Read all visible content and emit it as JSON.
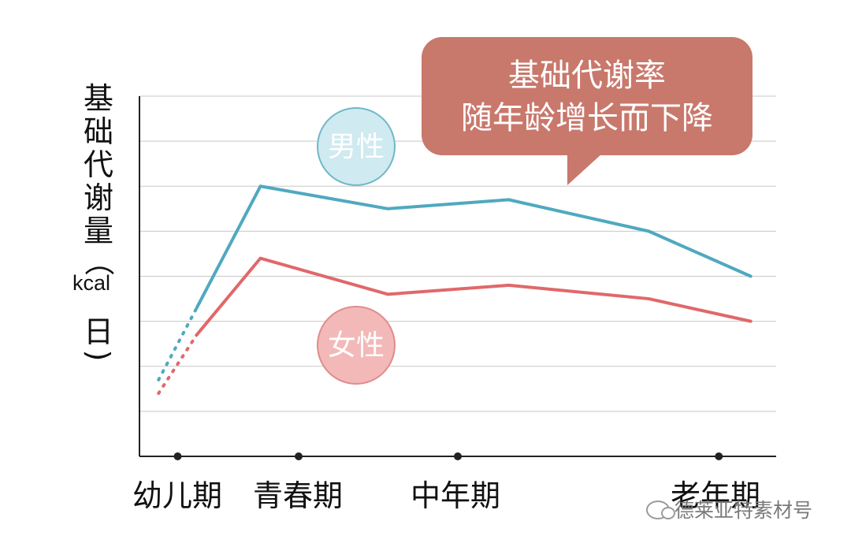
{
  "chart_data": {
    "type": "line",
    "title": "",
    "ylabel": "基础代谢量（kcal/日）",
    "ylabel_chars": [
      "基",
      "础",
      "代",
      "谢",
      "量",
      "（"
    ],
    "ylabel_unit": "kcal",
    "ylabel_tail_chars": [
      "日",
      ")"
    ],
    "xlabel": "",
    "categories": [
      "幼儿期",
      "青春期",
      "中年期",
      "老年期"
    ],
    "grid": true,
    "ylim": [
      0,
      8
    ],
    "xlim": [
      0,
      10
    ],
    "category_x": [
      0.6,
      2.5,
      5.0,
      9.1
    ],
    "series": [
      {
        "name": "男性",
        "color": "#4fa9bf",
        "dotted_x": [
          0.3,
          0.9
        ],
        "dotted_y": [
          1.7,
          3.3
        ],
        "x": [
          0.9,
          1.9,
          3.9,
          5.8,
          8.0,
          9.6
        ],
        "y": [
          3.3,
          6.0,
          5.5,
          5.7,
          5.0,
          4.0
        ]
      },
      {
        "name": "女性",
        "color": "#e0686a",
        "dotted_x": [
          0.3,
          0.9
        ],
        "dotted_y": [
          1.4,
          2.7
        ],
        "x": [
          0.9,
          1.9,
          3.9,
          5.8,
          8.0,
          9.6
        ],
        "y": [
          2.7,
          4.4,
          3.6,
          3.8,
          3.5,
          3.0
        ]
      }
    ],
    "annotation": {
      "lines": [
        "基础代谢率",
        "随年龄增长而下降"
      ],
      "color": "#c9786c"
    },
    "legend_bubbles": [
      "男性",
      "女性"
    ]
  },
  "watermark": "德莱亚特素材号"
}
